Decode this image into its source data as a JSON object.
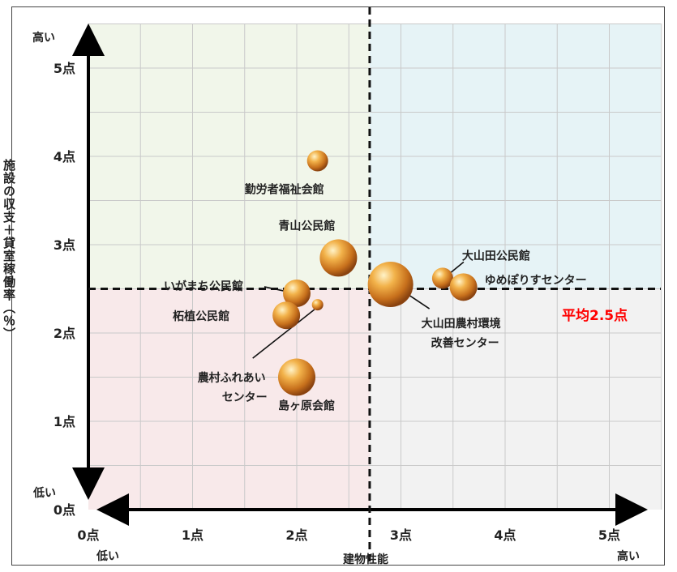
{
  "chart_data": {
    "type": "scatter",
    "xlabel": "建物性能",
    "ylabel": "施設の収支＋貸室稼働率（％）",
    "xlim": [
      0,
      5.5
    ],
    "ylim": [
      0,
      5.5
    ],
    "x_ticks": [
      "0点",
      "1点",
      "2点",
      "3点",
      "4点",
      "5点"
    ],
    "y_ticks": [
      "0点",
      "1点",
      "2点",
      "3点",
      "4点",
      "5点"
    ],
    "x_low": "低い",
    "x_high": "高い",
    "y_low": "低い",
    "y_high": "高い",
    "average_label": "平均2.5点",
    "average_value": 2.5,
    "quadrant_colors": {
      "top_left": "#f1f6ea",
      "top_right": "#e6f3f6",
      "bottom_left": "#f8e9ea",
      "bottom_right": "#f2f2f2"
    },
    "average_label_color": "#ff0000",
    "points": [
      {
        "name": "勤労者福祉会館",
        "x": 2.2,
        "y": 3.95,
        "size": "small"
      },
      {
        "name": "青山公民館",
        "x": 2.4,
        "y": 2.85,
        "size": "large"
      },
      {
        "name": "いがまち公民館",
        "x": 2.0,
        "y": 2.45,
        "size": "medium"
      },
      {
        "name": "柘植公民館",
        "x": 1.9,
        "y": 2.2,
        "size": "medium"
      },
      {
        "name": "農村ふれあいセンター",
        "x": 2.2,
        "y": 2.32,
        "size": "tiny"
      },
      {
        "name": "島ヶ原会館",
        "x": 2.0,
        "y": 1.5,
        "size": "large"
      },
      {
        "name": "大山田農村環境改善センター",
        "x": 2.9,
        "y": 2.55,
        "size": "xlarge"
      },
      {
        "name": "大山田公民館",
        "x": 3.4,
        "y": 2.62,
        "size": "small"
      },
      {
        "name": "ゆめぽりすセンター",
        "x": 3.6,
        "y": 2.52,
        "size": "medium"
      }
    ]
  }
}
